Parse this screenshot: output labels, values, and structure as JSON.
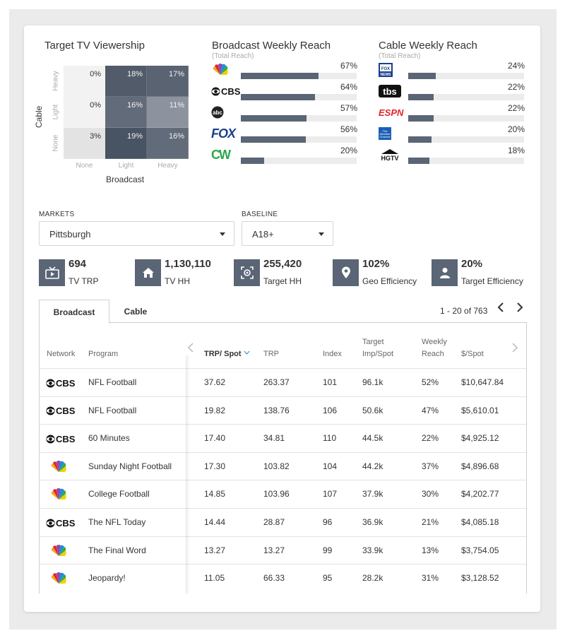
{
  "heatmap": {
    "title": "Target TV Viewership",
    "y_axis_label": "Cable",
    "x_axis_label": "Broadcast",
    "rows": [
      "Heavy",
      "Light",
      "None"
    ],
    "cols": [
      "None",
      "Light",
      "Heavy"
    ],
    "cells": [
      [
        "0%",
        "18%",
        "17%"
      ],
      [
        "0%",
        "16%",
        "11%"
      ],
      [
        "3%",
        "19%",
        "16%"
      ]
    ],
    "values": [
      [
        0,
        18,
        17
      ],
      [
        0,
        16,
        11
      ],
      [
        3,
        19,
        16
      ]
    ]
  },
  "broadcast_reach": {
    "title": "Broadcast Weekly Reach",
    "subtitle": "(Total Reach)",
    "items": [
      {
        "network": "NBC",
        "logo": "nbc-peacock-logo",
        "pct": "67%",
        "value": 67
      },
      {
        "network": "CBS",
        "logo": "cbs-eye-logo",
        "pct": "64%",
        "value": 64
      },
      {
        "network": "abc",
        "logo": "abc-logo",
        "pct": "57%",
        "value": 57
      },
      {
        "network": "FOX",
        "logo": "fox-logo",
        "pct": "56%",
        "value": 56
      },
      {
        "network": "CW",
        "logo": "cw-logo",
        "pct": "20%",
        "value": 20
      }
    ]
  },
  "cable_reach": {
    "title": "Cable Weekly Reach",
    "subtitle": "(Total Reach)",
    "items": [
      {
        "network": "FOX NEWS",
        "logo": "fox-news-logo",
        "pct": "24%",
        "value": 24
      },
      {
        "network": "tbs",
        "logo": "tbs-logo",
        "pct": "22%",
        "value": 22
      },
      {
        "network": "ESPN",
        "logo": "espn-logo",
        "pct": "22%",
        "value": 22
      },
      {
        "network": "The Weather Channel",
        "logo": "weather-channel-logo",
        "pct": "20%",
        "value": 20
      },
      {
        "network": "HGTV",
        "logo": "hgtv-logo",
        "pct": "18%",
        "value": 18
      }
    ]
  },
  "filters": {
    "markets_label": "MARKETS",
    "markets_value": "Pittsburgh",
    "baseline_label": "BASELINE",
    "baseline_value": "A18+"
  },
  "stats": [
    {
      "icon": "tv-icon",
      "value": "694",
      "label": "TV TRP"
    },
    {
      "icon": "home-icon",
      "value": "1,130,110",
      "label": "TV HH"
    },
    {
      "icon": "target-icon",
      "value": "255,420",
      "label": "Target HH"
    },
    {
      "icon": "location-pin-icon",
      "value": "102%",
      "label": "Geo Efficiency"
    },
    {
      "icon": "person-icon",
      "value": "20%",
      "label": "Target Efficiency"
    }
  ],
  "tabs": [
    "Broadcast",
    "Cable"
  ],
  "pagination": {
    "text": "1 - 20 of 763",
    "prev": "‹",
    "next": "›"
  },
  "table": {
    "headers": {
      "network": "Network",
      "program": "Program",
      "trp_spot": "TRP/ Spot",
      "trp": "TRP",
      "index": "Index",
      "target_imp_line1": "Target",
      "target_imp_line2": "Imp/Spot",
      "weekly_reach_line1": "Weekly",
      "weekly_reach_line2": "Reach",
      "cost_spot": "$/Spot"
    },
    "rows": [
      {
        "network": "CBS",
        "program": "NFL Football",
        "trp_spot": "37.62",
        "trp": "263.37",
        "index": "101",
        "imp": "96.1k",
        "reach": "52%",
        "cost": "$10,647.84"
      },
      {
        "network": "CBS",
        "program": "NFL Football",
        "trp_spot": "19.82",
        "trp": "138.76",
        "index": "106",
        "imp": "50.6k",
        "reach": "47%",
        "cost": "$5,610.01"
      },
      {
        "network": "CBS",
        "program": "60 Minutes",
        "trp_spot": "17.40",
        "trp": "34.81",
        "index": "110",
        "imp": "44.5k",
        "reach": "22%",
        "cost": "$4,925.12"
      },
      {
        "network": "NBC",
        "program": "Sunday Night Football",
        "trp_spot": "17.30",
        "trp": "103.82",
        "index": "104",
        "imp": "44.2k",
        "reach": "37%",
        "cost": "$4,896.68"
      },
      {
        "network": "NBC",
        "program": "College Football",
        "trp_spot": "14.85",
        "trp": "103.96",
        "index": "107",
        "imp": "37.9k",
        "reach": "30%",
        "cost": "$4,202.77"
      },
      {
        "network": "CBS",
        "program": "The NFL Today",
        "trp_spot": "14.44",
        "trp": "28.87",
        "index": "96",
        "imp": "36.9k",
        "reach": "21%",
        "cost": "$4,085.18"
      },
      {
        "network": "NBC",
        "program": "The Final Word",
        "trp_spot": "13.27",
        "trp": "13.27",
        "index": "99",
        "imp": "33.9k",
        "reach": "13%",
        "cost": "$3,754.05"
      },
      {
        "network": "NBC",
        "program": "Jeopardy!",
        "trp_spot": "11.05",
        "trp": "66.33",
        "index": "95",
        "imp": "28.2k",
        "reach": "31%",
        "cost": "$3,128.52"
      }
    ]
  },
  "colors": {
    "accent": "#5a6575",
    "sort_arrow": "#3aa7d9"
  }
}
